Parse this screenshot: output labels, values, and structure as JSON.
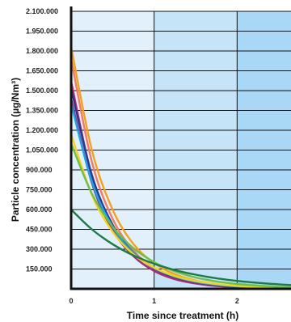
{
  "chart_data": {
    "type": "line",
    "title": "",
    "xlabel": "Time since treatment (h)",
    "ylabel": "Particle concentration (µg/Nm³)",
    "xlim": [
      0,
      2.75
    ],
    "ylim": [
      0,
      2100000
    ],
    "x_ticks": [
      {
        "value": 0,
        "label": "0"
      },
      {
        "value": 1,
        "label": "1"
      },
      {
        "value": 2,
        "label": "2"
      }
    ],
    "y_ticks": [
      {
        "value": 150000,
        "label": "150.000"
      },
      {
        "value": 300000,
        "label": "300.000"
      },
      {
        "value": 450000,
        "label": "450.000"
      },
      {
        "value": 600000,
        "label": "600.000"
      },
      {
        "value": 750000,
        "label": "750.000"
      },
      {
        "value": 900000,
        "label": "900.000"
      },
      {
        "value": 1050000,
        "label": "1.050.000"
      },
      {
        "value": 1200000,
        "label": "1.200.000"
      },
      {
        "value": 1350000,
        "label": "1.350.000"
      },
      {
        "value": 1500000,
        "label": "1.500.000"
      },
      {
        "value": 1650000,
        "label": "1.650.000"
      },
      {
        "value": 1800000,
        "label": "1.800.000"
      },
      {
        "value": 1950000,
        "label": "1.950.000"
      },
      {
        "value": 2100000,
        "label": "2.100.000"
      }
    ],
    "grid": true,
    "background_bands": [
      {
        "from": 0,
        "to": 1,
        "color": "#e1f0fb"
      },
      {
        "from": 1,
        "to": 2,
        "color": "#c6e4f8"
      },
      {
        "from": 2,
        "to": 2.75,
        "color": "#a9d8f7"
      }
    ],
    "series": [
      {
        "color": "#f4a11d",
        "x": [
          0,
          0.25,
          0.5,
          0.75,
          1,
          1.25,
          1.5,
          1.75,
          2,
          2.25,
          2.5,
          2.75
        ],
        "y": [
          1830000,
          1050000,
          600000,
          340000,
          195000,
          110000,
          62000,
          35000,
          20000,
          11000,
          6000,
          3000
        ]
      },
      {
        "color": "#f27c62",
        "x": [
          0,
          0.25,
          0.5,
          0.75,
          1,
          1.25,
          1.5,
          1.75,
          2,
          2.25,
          2.5,
          2.75
        ],
        "y": [
          1740000,
          960000,
          530000,
          290000,
          160000,
          88000,
          48000,
          27000,
          15000,
          8000,
          4500,
          2500
        ]
      },
      {
        "color": "#d61f5c",
        "x": [
          0,
          0.25,
          0.5,
          0.75,
          1,
          1.25,
          1.5,
          1.75,
          2,
          2.25,
          2.5,
          2.75
        ],
        "y": [
          1570000,
          850000,
          460000,
          250000,
          135000,
          73000,
          40000,
          21000,
          12000,
          6000,
          3500,
          2000
        ]
      },
      {
        "color": "#9c2f84",
        "x": [
          0,
          0.25,
          0.5,
          0.75,
          1,
          1.25,
          1.5,
          1.75,
          2,
          2.25,
          2.5,
          2.75
        ],
        "y": [
          1440000,
          800000,
          445000,
          248000,
          138000,
          77000,
          43000,
          24000,
          13000,
          7000,
          4000,
          2200
        ]
      },
      {
        "color": "#263a94",
        "x": [
          0,
          0.25,
          0.5,
          0.75,
          1,
          1.25,
          1.5,
          1.75,
          2,
          2.25,
          2.5,
          2.75
        ],
        "y": [
          1520000,
          860000,
          485000,
          274000,
          155000,
          88000,
          50000,
          28000,
          16000,
          9000,
          5000,
          2800
        ]
      },
      {
        "color": "#1aa6e0",
        "x": [
          0,
          0.25,
          0.5,
          0.75,
          1,
          1.25,
          1.5,
          1.75,
          2,
          2.25,
          2.5,
          2.75
        ],
        "y": [
          1400000,
          810000,
          470000,
          272000,
          158000,
          92000,
          53000,
          31000,
          18000,
          10000,
          6000,
          3400
        ]
      },
      {
        "color": "#f5d21b",
        "x": [
          0,
          0.25,
          0.5,
          0.75,
          1,
          1.25,
          1.5,
          1.75,
          2,
          2.25,
          2.5,
          2.75
        ],
        "y": [
          1170000,
          710000,
          432000,
          262000,
          160000,
          97000,
          59000,
          36000,
          22000,
          13000,
          8000,
          4800
        ]
      },
      {
        "color": "#6cc04a",
        "x": [
          0,
          0.25,
          0.5,
          0.75,
          1,
          1.25,
          1.5,
          1.75,
          2,
          2.25,
          2.5,
          2.75
        ],
        "y": [
          1100000,
          720000,
          470000,
          308000,
          202000,
          132000,
          86000,
          56000,
          37000,
          24000,
          16000,
          10000
        ]
      },
      {
        "color": "#1e7b45",
        "x": [
          0,
          0.25,
          0.5,
          0.75,
          1,
          1.25,
          1.5,
          1.75,
          2,
          2.25,
          2.5,
          2.75
        ],
        "y": [
          600000,
          450000,
          338000,
          253000,
          190000,
          142000,
          107000,
          80000,
          60000,
          45000,
          34000,
          25000
        ]
      }
    ]
  }
}
